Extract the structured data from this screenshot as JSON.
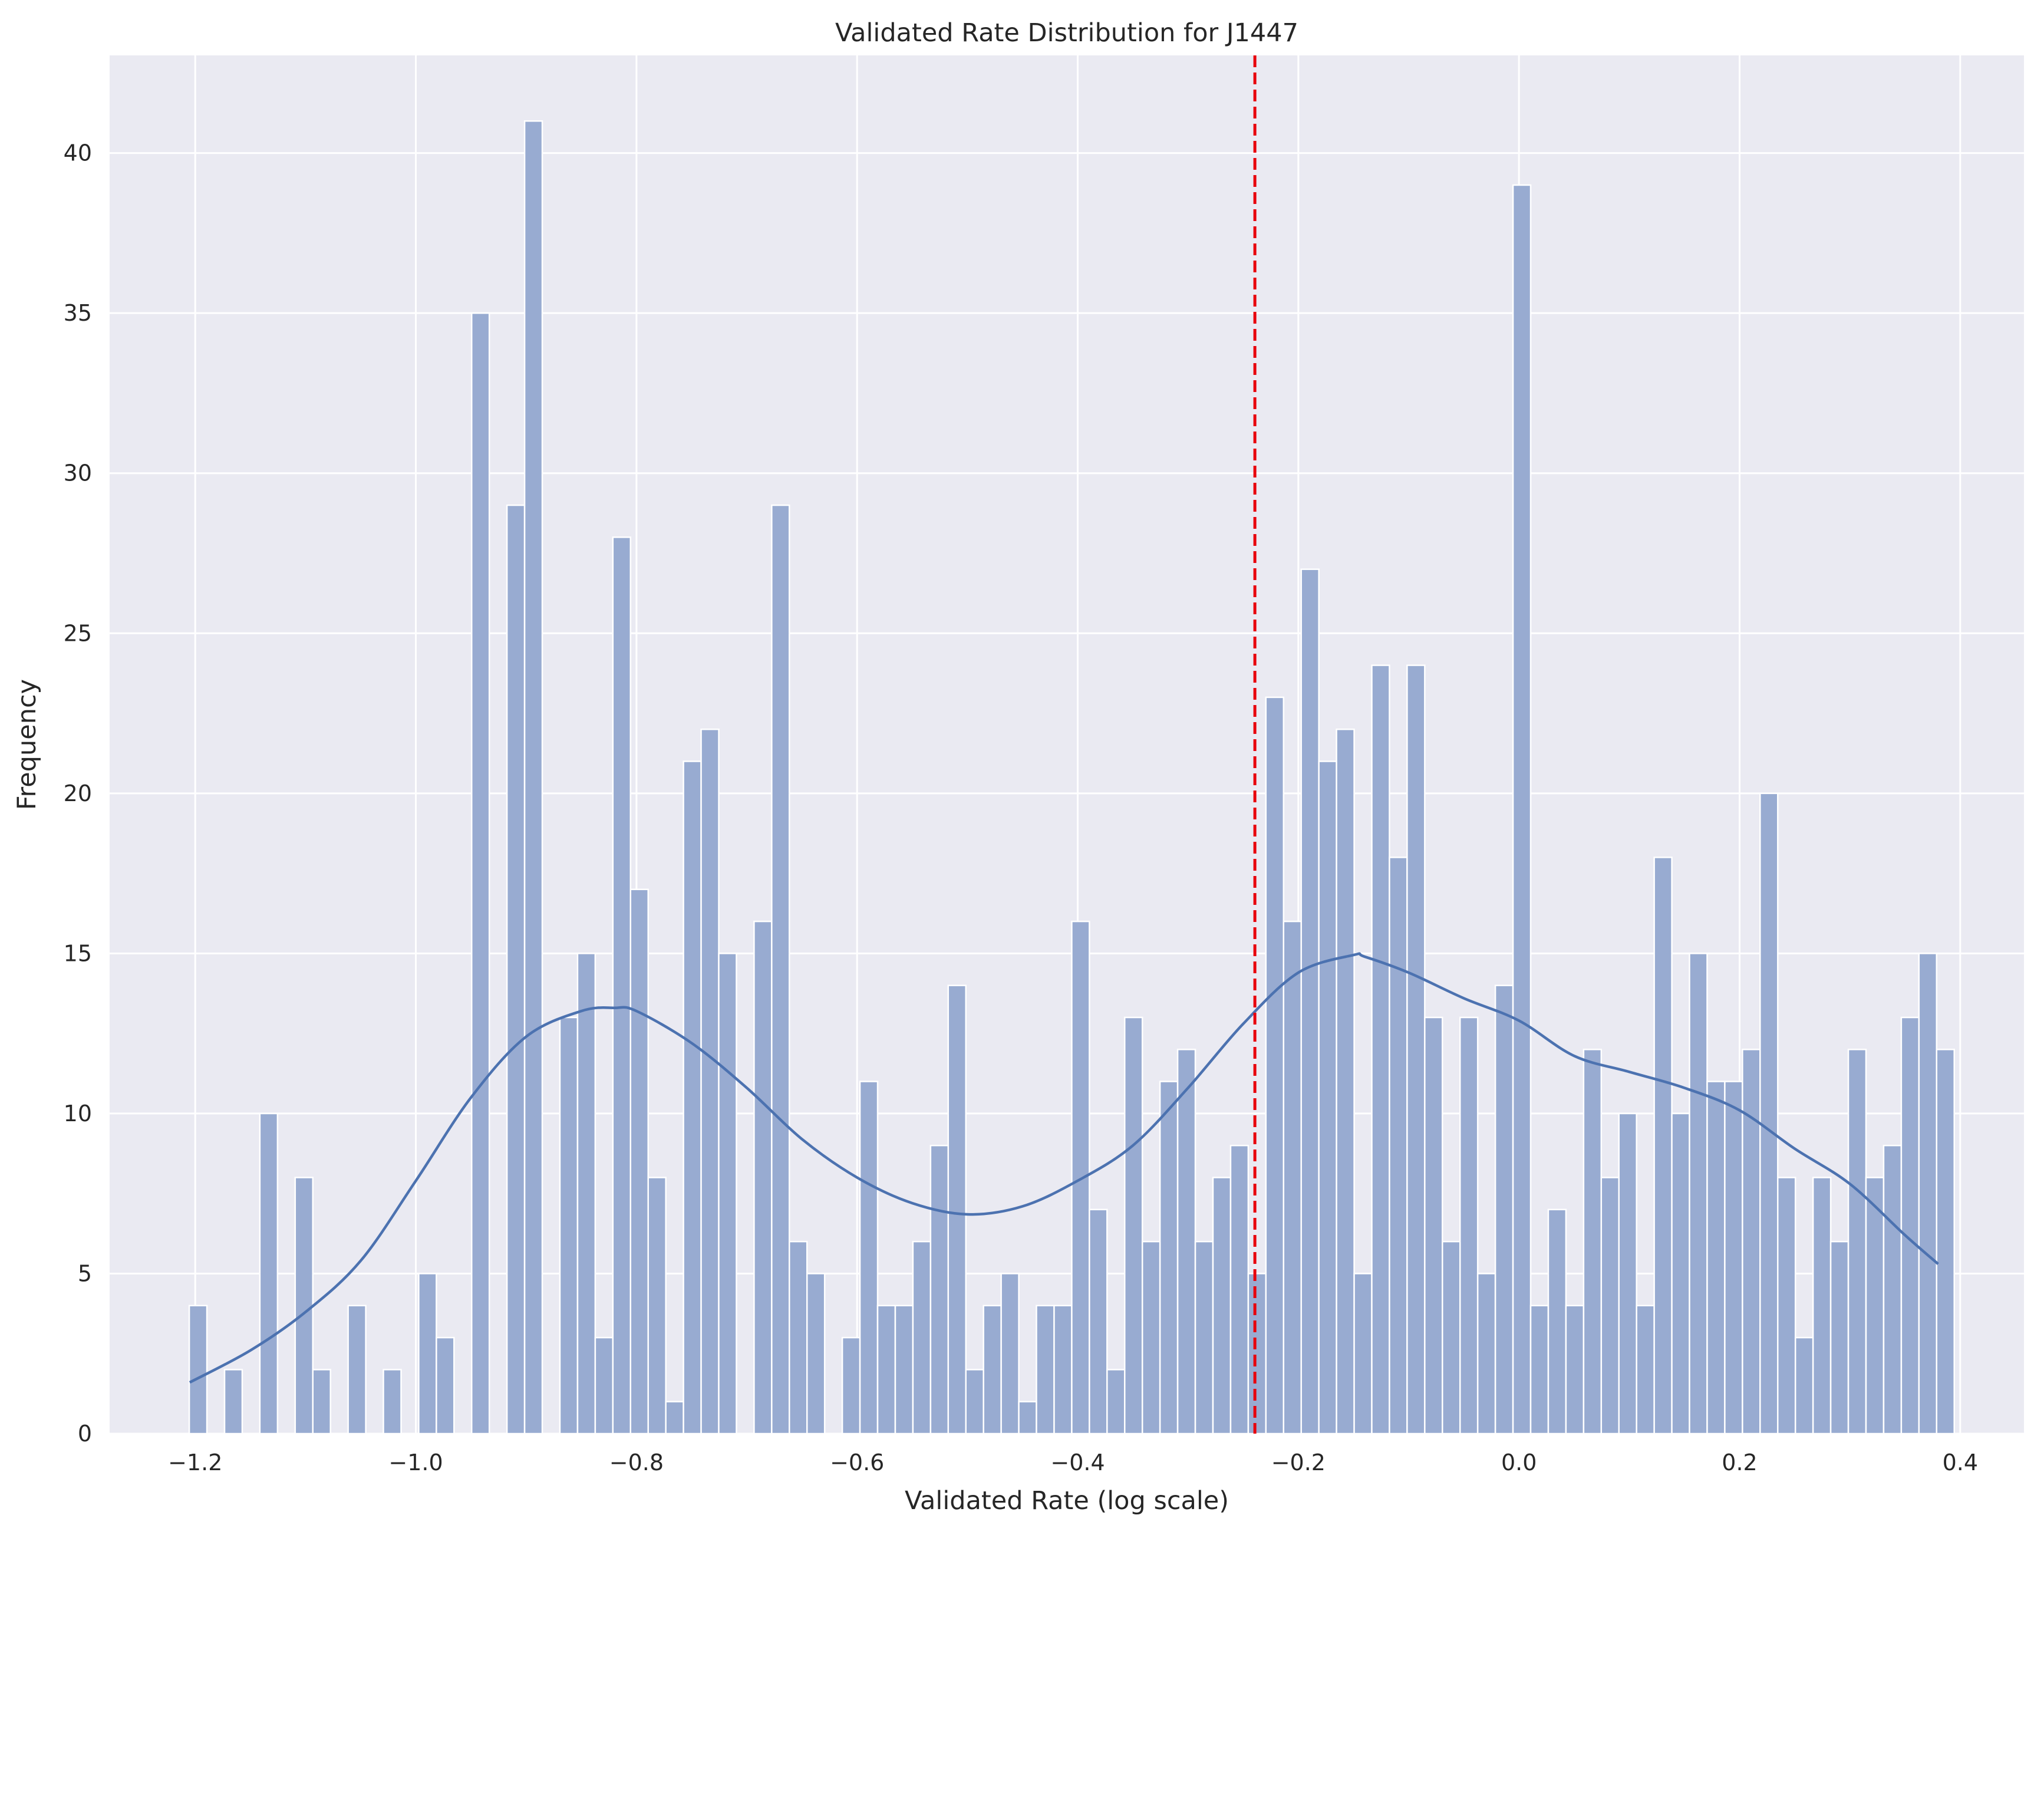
{
  "chart_data": {
    "type": "bar",
    "title": "Validated Rate Distribution for J1447",
    "xlabel": "Validated Rate (log scale)",
    "ylabel": "Frequency",
    "xlim": [
      -1.2776,
      0.4578
    ],
    "ylim": [
      0,
      43.05
    ],
    "xticks": [
      {
        "value": -1.2,
        "label": "−1.2"
      },
      {
        "value": -1.0,
        "label": "−1.0"
      },
      {
        "value": -0.8,
        "label": "−0.8"
      },
      {
        "value": -0.6,
        "label": "−0.6"
      },
      {
        "value": -0.4,
        "label": "−0.4"
      },
      {
        "value": -0.2,
        "label": "−0.2"
      },
      {
        "value": 0.0,
        "label": "0.0"
      },
      {
        "value": 0.2,
        "label": "0.2"
      },
      {
        "value": 0.4,
        "label": "0.4"
      }
    ],
    "yticks": [
      {
        "value": 0,
        "label": "0"
      },
      {
        "value": 5,
        "label": "5"
      },
      {
        "value": 10,
        "label": "10"
      },
      {
        "value": 15,
        "label": "15"
      },
      {
        "value": 20,
        "label": "20"
      },
      {
        "value": 25,
        "label": "25"
      },
      {
        "value": 30,
        "label": "30"
      },
      {
        "value": 35,
        "label": "35"
      },
      {
        "value": 40,
        "label": "40"
      }
    ],
    "bins": {
      "start": -1.2054,
      "width": 0.016,
      "counts": [
        4,
        0,
        2,
        0,
        10,
        0,
        8,
        2,
        0,
        4,
        0,
        2,
        0,
        5,
        3,
        0,
        35,
        0,
        29,
        41,
        0,
        13,
        15,
        3,
        28,
        17,
        8,
        1,
        21,
        22,
        15,
        0,
        16,
        29,
        6,
        5,
        0,
        3,
        11,
        4,
        4,
        6,
        9,
        14,
        2,
        4,
        5,
        1,
        4,
        4,
        16,
        7,
        2,
        13,
        6,
        11,
        12,
        6,
        8,
        9,
        5,
        23,
        16,
        27,
        21,
        22,
        5,
        24,
        18,
        24,
        13,
        6,
        13,
        5,
        14,
        39,
        4,
        7,
        4,
        12,
        8,
        10,
        4,
        18,
        10,
        15,
        11,
        11,
        12,
        20,
        8,
        3,
        8,
        6,
        12,
        8,
        9,
        13,
        15,
        12
      ]
    },
    "kde": {
      "x": [
        -1.205,
        -1.15,
        -1.1,
        -1.05,
        -1.0,
        -0.95,
        -0.9,
        -0.85,
        -0.82,
        -0.8,
        -0.75,
        -0.7,
        -0.65,
        -0.6,
        -0.55,
        -0.5,
        -0.45,
        -0.4,
        -0.35,
        -0.3,
        -0.25,
        -0.2,
        -0.15,
        -0.14,
        -0.1,
        -0.05,
        0.0,
        0.05,
        0.1,
        0.15,
        0.2,
        0.25,
        0.3,
        0.35,
        0.38
      ],
      "y": [
        1.6,
        2.6,
        3.8,
        5.4,
        7.9,
        10.5,
        12.4,
        13.2,
        13.3,
        13.2,
        12.2,
        10.8,
        9.2,
        8.0,
        7.2,
        6.85,
        7.1,
        7.9,
        9.0,
        10.8,
        12.8,
        14.4,
        14.95,
        14.9,
        14.4,
        13.6,
        12.9,
        11.8,
        11.3,
        10.8,
        10.1,
        8.9,
        7.8,
        6.2,
        5.3
      ]
    },
    "mean_line": {
      "value": -0.2394
    },
    "colors": {
      "bar": "#98abd1",
      "bar_edge": "#ffffff",
      "kde": "#4c72b0",
      "mean_line": "#e8000b",
      "plot_bg": "#eaeaf2",
      "grid": "#ffffff"
    },
    "grid": true,
    "legend": "none"
  }
}
